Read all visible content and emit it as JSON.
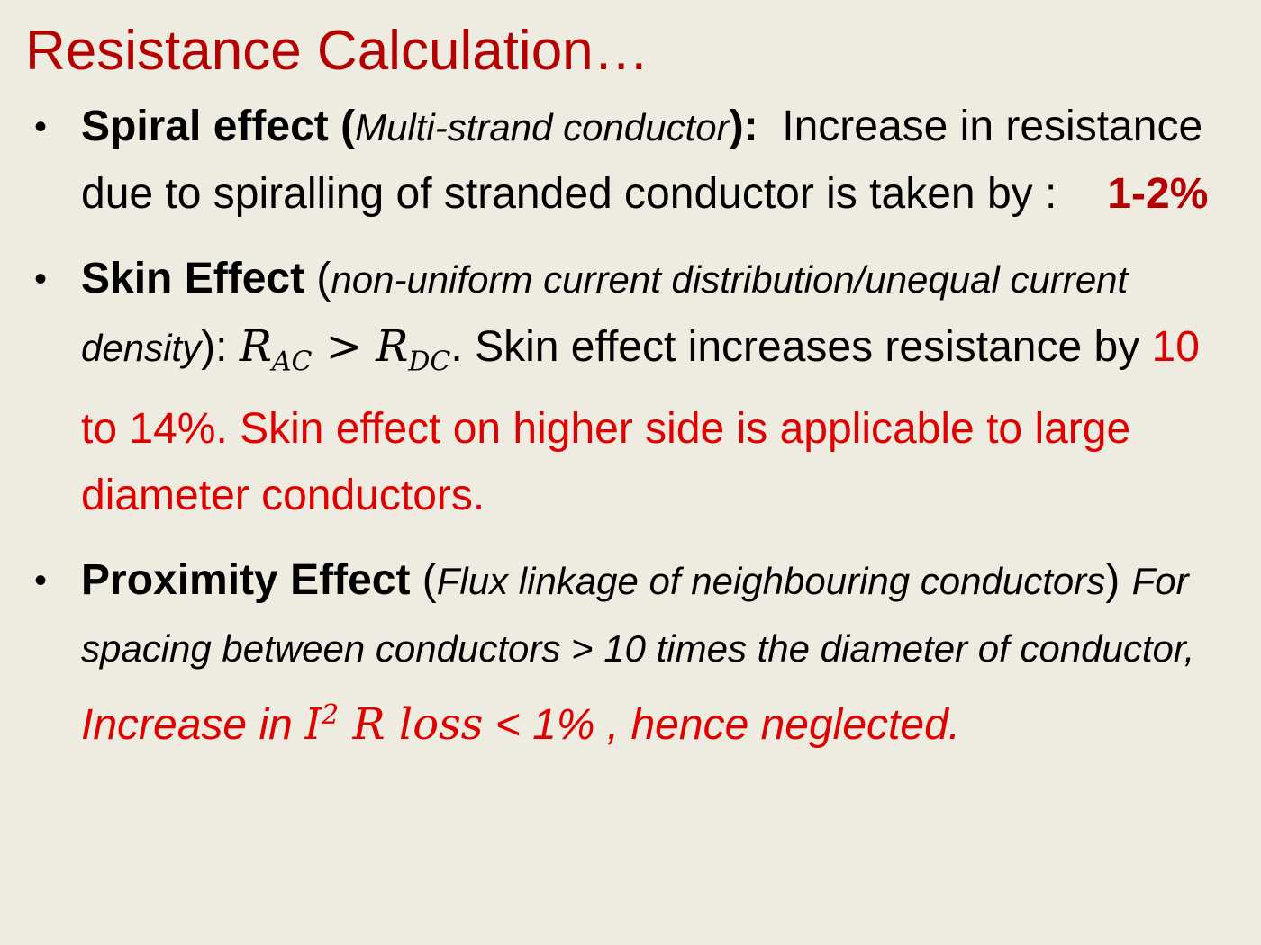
{
  "slide": {
    "title": "Resistance Calculation…",
    "bullets": [
      {
        "heading": "Spiral effect (",
        "paren": "Multi-strand conductor",
        "heading_close": "):",
        "text": "Increase in resistance due to spiralling of stranded conductor is taken by :",
        "value": "1-2%"
      },
      {
        "heading": "Skin Effect",
        "paren_open": " (",
        "paren": "non-uniform  current distribution/unequal current density",
        "paren_close": "): ",
        "eq_r": "R",
        "eq_ac": "AC",
        "eq_gt": " > ",
        "eq_dc": "DC",
        "eq_end": ".",
        "text": " Skin effect increases resistance by ",
        "red_text": "10 to 14%. Skin effect on higher side is applicable to large diameter conductors."
      },
      {
        "heading": "Proximity Effect",
        "paren_open": " (",
        "paren": "Flux linkage of neighbouring conductors",
        "paren_close": ")",
        "text": "For spacing between conductors > 10 times the diameter of conductor,",
        "red_1": "Increase in ",
        "eq_i": "I",
        "eq_sup": "2",
        "eq_rloss": "R loss",
        "red_2": " < 1% , hence neglected."
      }
    ]
  }
}
